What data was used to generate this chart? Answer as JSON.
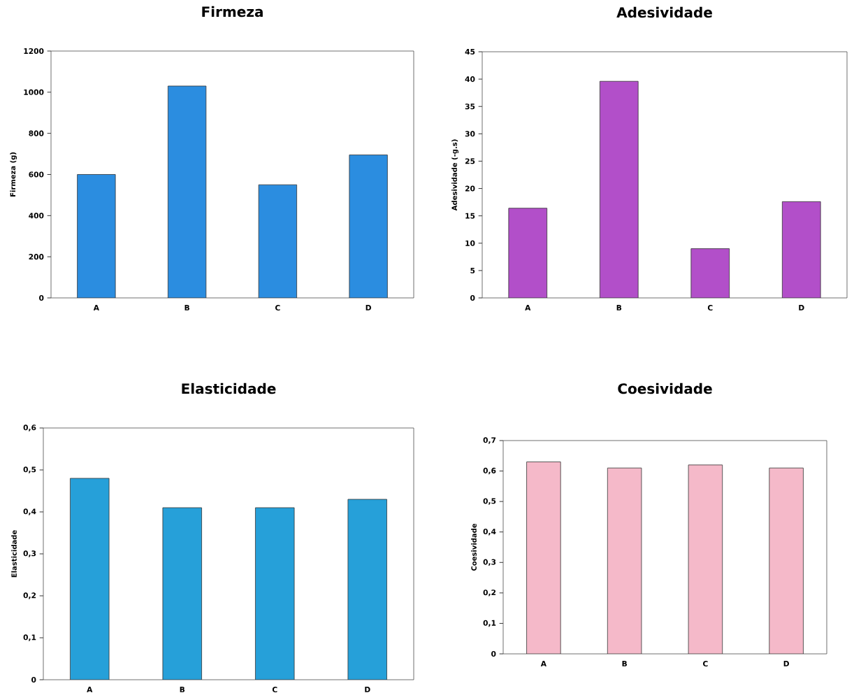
{
  "chart_data": [
    {
      "type": "bar",
      "title": "Firmeza",
      "ylabel": "Firmeza (g)",
      "categories": [
        "A",
        "B",
        "C",
        "D"
      ],
      "values": [
        600,
        1030,
        550,
        695
      ],
      "color": "#2b8de0",
      "ylim": [
        0,
        1200
      ],
      "yticks": [
        0,
        200,
        400,
        600,
        800,
        1000,
        1200
      ]
    },
    {
      "type": "bar",
      "title": "Adesividade",
      "ylabel": "Adesividade (-g.s)",
      "categories": [
        "A",
        "B",
        "C",
        "D"
      ],
      "values": [
        16.4,
        39.6,
        9.0,
        17.6
      ],
      "color": "#b24fc9",
      "ylim": [
        0,
        45
      ],
      "yticks": [
        0,
        5,
        10,
        15,
        20,
        25,
        30,
        35,
        40,
        45
      ]
    },
    {
      "type": "bar",
      "title": "Elasticidade",
      "ylabel": "Elasticidade",
      "categories": [
        "A",
        "B",
        "C",
        "D"
      ],
      "values": [
        0.48,
        0.41,
        0.41,
        0.43
      ],
      "color": "#26a0d9",
      "ylim": [
        0,
        0.6
      ],
      "yticks": [
        0,
        {
          "value": 0.1,
          "label": "0,1"
        },
        {
          "value": 0.2,
          "label": "0,2"
        },
        {
          "value": 0.3,
          "label": "0,3"
        },
        {
          "value": 0.4,
          "label": "0,4"
        },
        {
          "value": 0.5,
          "label": "0,5"
        },
        {
          "value": 0.6,
          "label": "0,6"
        }
      ]
    },
    {
      "type": "bar",
      "title": "Coesividade",
      "ylabel": "Coesividade",
      "categories": [
        "A",
        "B",
        "C",
        "D"
      ],
      "values": [
        0.63,
        0.61,
        0.62,
        0.61
      ],
      "color": "#f5b9c9",
      "ylim": [
        0,
        0.7
      ],
      "yticks": [
        0,
        {
          "value": 0.1,
          "label": "0,1"
        },
        {
          "value": 0.2,
          "label": "0,2"
        },
        {
          "value": 0.3,
          "label": "0,3"
        },
        {
          "value": 0.4,
          "label": "0,4"
        },
        {
          "value": 0.5,
          "label": "0,5"
        },
        {
          "value": 0.6,
          "label": "0,6"
        },
        {
          "value": 0.7,
          "label": "0,7"
        }
      ]
    }
  ]
}
